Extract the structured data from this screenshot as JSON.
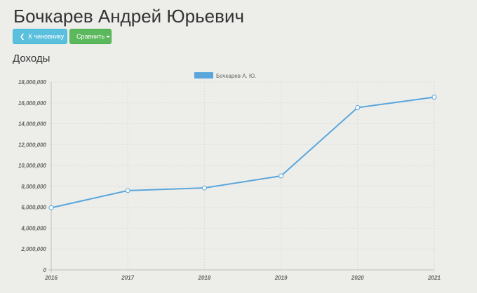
{
  "header": {
    "title": "Бочкарев Андрей Юрьевич"
  },
  "toolbar": {
    "back_label": "К чиновнику",
    "compare_label": "Сравнить"
  },
  "section": {
    "title": "Доходы"
  },
  "colors": {
    "series": "#5aa6dc",
    "back_button": "#5bc0de",
    "compare_button": "#5cb85c"
  },
  "icons": {
    "back": "chevron-left-icon",
    "compare": "caret-down-icon"
  },
  "chart_data": {
    "type": "line",
    "x": [
      "2016",
      "2017",
      "2018",
      "2019",
      "2020",
      "2021"
    ],
    "series": [
      {
        "name": "Бочкарев А. Ю.",
        "values": [
          5950000,
          7600000,
          7850000,
          9000000,
          15550000,
          16550000
        ]
      }
    ],
    "yticks": [
      "0",
      "2,000,000",
      "4,000,000",
      "6,000,000",
      "8,000,000",
      "10,000,000",
      "12,000,000",
      "14,000,000",
      "16,000,000",
      "18,000,000"
    ],
    "ylim": [
      0,
      18000000
    ],
    "grid": true,
    "legend": "top-center"
  }
}
